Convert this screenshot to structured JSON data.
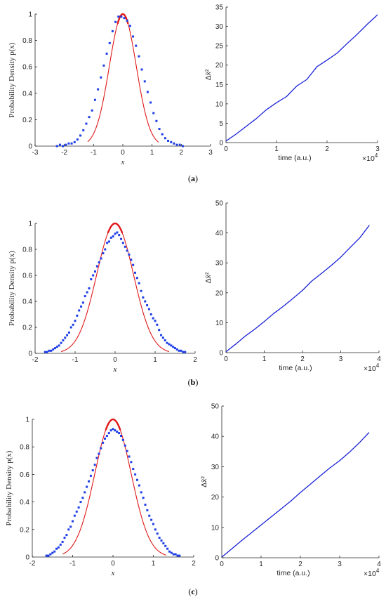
{
  "colors": {
    "scatter": "#1f3fe6",
    "fit": "#e01818",
    "msd": "#1a22d6",
    "axis": "#262626"
  },
  "panels": [
    {
      "caption_open": "(",
      "caption_letter": "a",
      "caption_close": ")",
      "left": {
        "xlabel": "x",
        "ylabel": "Probability Density p(x)",
        "xticks": [
          "-3",
          "-2",
          "-1",
          "0",
          "1",
          "2",
          "3"
        ],
        "yticks": [
          "0",
          "0.2",
          "0.4",
          "0.6",
          "0.8",
          "1"
        ]
      },
      "right": {
        "xlabel": "time (a.u.)",
        "ylabel": "Δx̄²",
        "xticks": [
          "0",
          "1",
          "2",
          "3"
        ],
        "yticks": [
          "0",
          "5",
          "10",
          "15",
          "20",
          "25",
          "30",
          "35"
        ],
        "x_exponent_base": "×10",
        "x_exponent_power": "4"
      }
    },
    {
      "caption_open": "(",
      "caption_letter": "b",
      "caption_close": ")",
      "left": {
        "xlabel": "x",
        "ylabel": "Probability Density p(x)",
        "xticks": [
          "-2",
          "-1",
          "0",
          "1",
          "2"
        ],
        "yticks": [
          "0",
          "0.2",
          "0.4",
          "0.6",
          "0.8",
          "1"
        ]
      },
      "right": {
        "xlabel": "time (a.u.)",
        "ylabel": "Δx̄²",
        "xticks": [
          "0",
          "1",
          "2",
          "3",
          "4"
        ],
        "yticks": [
          "0",
          "10",
          "20",
          "30",
          "40",
          "50"
        ],
        "x_exponent_base": "×10",
        "x_exponent_power": "4"
      }
    },
    {
      "caption_open": "(",
      "caption_letter": "c",
      "caption_close": ")",
      "left": {
        "xlabel": "x",
        "ylabel": "Probability Density p(x)",
        "xticks": [
          "-2",
          "-1",
          "0",
          "1",
          "2"
        ],
        "yticks": [
          "0",
          "0.2",
          "0.4",
          "0.6",
          "0.8",
          "1"
        ]
      },
      "right": {
        "xlabel": "time (a.u.)",
        "ylabel": "Δx̄²",
        "xticks": [
          "0",
          "1",
          "2",
          "3",
          "4"
        ],
        "yticks": [
          "0",
          "10",
          "20",
          "30",
          "40",
          "50"
        ],
        "x_exponent_base": "×10",
        "x_exponent_power": "4"
      }
    }
  ],
  "chart_data": [
    {
      "type": "scatter",
      "panel": "a-left",
      "xlabel": "x",
      "ylabel": "Probability Density p(x)",
      "xlim": [
        -3,
        3
      ],
      "ylim": [
        0,
        1
      ],
      "series": [
        {
          "kind": "markers",
          "x": [
            -2.25,
            -2.15,
            -2.05,
            -1.95,
            -1.85,
            -1.75,
            -1.65,
            -1.55,
            -1.45,
            -1.35,
            -1.25,
            -1.15,
            -1.05,
            -0.95,
            -0.85,
            -0.75,
            -0.65,
            -0.55,
            -0.45,
            -0.35,
            -0.25,
            -0.15,
            -0.05,
            0.05,
            0.15,
            0.25,
            0.35,
            0.45,
            0.55,
            0.65,
            0.75,
            0.85,
            0.95,
            1.05,
            1.15,
            1.25,
            1.35,
            1.45,
            1.55,
            1.65,
            1.75,
            1.85,
            1.95,
            2.05
          ],
          "y": [
            0.0,
            0.01,
            0.0,
            0.01,
            0.02,
            0.02,
            0.03,
            0.05,
            0.08,
            0.12,
            0.17,
            0.22,
            0.27,
            0.35,
            0.43,
            0.52,
            0.61,
            0.7,
            0.78,
            0.87,
            0.94,
            0.98,
            0.98,
            0.97,
            0.95,
            0.91,
            0.83,
            0.76,
            0.68,
            0.58,
            0.49,
            0.41,
            0.33,
            0.25,
            0.19,
            0.13,
            0.09,
            0.06,
            0.04,
            0.03,
            0.02,
            0.01,
            0.01,
            0.0
          ]
        },
        {
          "kind": "curve",
          "mu": 0,
          "sigma": 0.46,
          "amplitude": 1,
          "x_range": [
            -1.2,
            1.22
          ]
        }
      ]
    },
    {
      "type": "line",
      "panel": "a-right",
      "xlabel": "time (a.u.)",
      "ylabel": "Δx̄²",
      "xlim": [
        0,
        30000
      ],
      "ylim": [
        0,
        35
      ],
      "series": [
        {
          "x": [
            0,
            2000,
            4000,
            6000,
            8000,
            10000,
            12000,
            14000,
            16000,
            18000,
            20000,
            22000,
            24000,
            26000,
            28000,
            30000
          ],
          "y": [
            0.4,
            2.2,
            4.2,
            6.2,
            8.5,
            10.3,
            11.9,
            14.6,
            16.3,
            19.6,
            21.3,
            23.1,
            25.6,
            28.0,
            30.6,
            33.0
          ]
        }
      ]
    },
    {
      "type": "scatter",
      "panel": "b-left",
      "xlabel": "x",
      "ylabel": "Probability Density p(x)",
      "xlim": [
        -2,
        2
      ],
      "ylim": [
        0,
        1
      ],
      "series": [
        {
          "kind": "markers",
          "x": [
            -1.75,
            -1.7,
            -1.65,
            -1.6,
            -1.55,
            -1.5,
            -1.45,
            -1.4,
            -1.35,
            -1.3,
            -1.25,
            -1.2,
            -1.15,
            -1.1,
            -1.05,
            -1.0,
            -0.95,
            -0.9,
            -0.85,
            -0.8,
            -0.75,
            -0.7,
            -0.65,
            -0.6,
            -0.55,
            -0.5,
            -0.45,
            -0.4,
            -0.35,
            -0.3,
            -0.25,
            -0.2,
            -0.15,
            -0.1,
            -0.05,
            0.0,
            0.05,
            0.1,
            0.15,
            0.2,
            0.25,
            0.3,
            0.35,
            0.4,
            0.45,
            0.5,
            0.55,
            0.6,
            0.65,
            0.7,
            0.75,
            0.8,
            0.85,
            0.9,
            0.95,
            1.0,
            1.05,
            1.1,
            1.15,
            1.2,
            1.25,
            1.3,
            1.35,
            1.4,
            1.45,
            1.5,
            1.55,
            1.6,
            1.65,
            1.7,
            1.75
          ],
          "y": [
            0.01,
            0.01,
            0.02,
            0.02,
            0.03,
            0.04,
            0.05,
            0.06,
            0.08,
            0.1,
            0.12,
            0.14,
            0.16,
            0.2,
            0.22,
            0.25,
            0.29,
            0.33,
            0.36,
            0.39,
            0.44,
            0.47,
            0.5,
            0.57,
            0.6,
            0.63,
            0.67,
            0.7,
            0.73,
            0.77,
            0.8,
            0.85,
            0.86,
            0.89,
            0.9,
            0.92,
            0.93,
            0.91,
            0.88,
            0.85,
            0.82,
            0.79,
            0.76,
            0.72,
            0.68,
            0.62,
            0.58,
            0.54,
            0.48,
            0.43,
            0.4,
            0.37,
            0.34,
            0.3,
            0.27,
            0.25,
            0.22,
            0.18,
            0.14,
            0.12,
            0.1,
            0.08,
            0.07,
            0.06,
            0.05,
            0.04,
            0.03,
            0.02,
            0.02,
            0.01,
            0.01
          ]
        },
        {
          "kind": "curve",
          "mu": 0,
          "sigma": 0.46,
          "amplitude": 1,
          "x_range": [
            -1.35,
            1.35
          ]
        }
      ]
    },
    {
      "type": "line",
      "panel": "b-right",
      "xlabel": "time (a.u.)",
      "ylabel": "Δx̄²",
      "xlim": [
        0,
        40000
      ],
      "ylim": [
        0,
        50
      ],
      "series": [
        {
          "x": [
            0,
            2500,
            5000,
            7500,
            10000,
            12500,
            15000,
            17500,
            20000,
            22500,
            25000,
            27500,
            30000,
            32500,
            35000,
            37500
          ],
          "y": [
            0.3,
            2.8,
            5.5,
            7.8,
            10.4,
            13.1,
            15.5,
            18.1,
            20.8,
            24.0,
            26.5,
            29.1,
            31.9,
            35.2,
            38.4,
            42.6
          ]
        }
      ]
    },
    {
      "type": "scatter",
      "panel": "c-left",
      "xlabel": "x",
      "ylabel": "Probability Density p(x)",
      "xlim": [
        -2,
        2
      ],
      "ylim": [
        0,
        1
      ],
      "series": [
        {
          "kind": "markers",
          "x": [
            -1.65,
            -1.6,
            -1.55,
            -1.5,
            -1.45,
            -1.4,
            -1.35,
            -1.3,
            -1.25,
            -1.2,
            -1.15,
            -1.1,
            -1.05,
            -1.0,
            -0.95,
            -0.9,
            -0.85,
            -0.8,
            -0.75,
            -0.7,
            -0.65,
            -0.6,
            -0.55,
            -0.5,
            -0.45,
            -0.4,
            -0.35,
            -0.3,
            -0.25,
            -0.2,
            -0.15,
            -0.1,
            -0.05,
            0.0,
            0.05,
            0.1,
            0.15,
            0.2,
            0.25,
            0.3,
            0.35,
            0.4,
            0.45,
            0.5,
            0.55,
            0.6,
            0.65,
            0.7,
            0.75,
            0.8,
            0.85,
            0.9,
            0.95,
            1.0,
            1.05,
            1.1,
            1.15,
            1.2,
            1.25,
            1.3,
            1.35,
            1.4,
            1.45,
            1.5,
            1.55,
            1.6,
            1.65
          ],
          "y": [
            0.01,
            0.01,
            0.02,
            0.03,
            0.04,
            0.06,
            0.07,
            0.09,
            0.11,
            0.14,
            0.16,
            0.2,
            0.22,
            0.26,
            0.3,
            0.33,
            0.36,
            0.4,
            0.43,
            0.47,
            0.51,
            0.55,
            0.59,
            0.63,
            0.67,
            0.72,
            0.75,
            0.79,
            0.83,
            0.86,
            0.88,
            0.9,
            0.92,
            0.93,
            0.92,
            0.91,
            0.9,
            0.88,
            0.85,
            0.81,
            0.77,
            0.73,
            0.69,
            0.64,
            0.6,
            0.56,
            0.52,
            0.47,
            0.43,
            0.38,
            0.34,
            0.3,
            0.27,
            0.24,
            0.2,
            0.17,
            0.14,
            0.12,
            0.1,
            0.08,
            0.06,
            0.04,
            0.03,
            0.02,
            0.02,
            0.01,
            0.01
          ]
        },
        {
          "kind": "curve",
          "mu": 0,
          "sigma": 0.45,
          "amplitude": 1,
          "x_range": [
            -1.25,
            1.32
          ]
        }
      ]
    },
    {
      "type": "line",
      "panel": "c-right",
      "xlabel": "time (a.u.)",
      "ylabel": "Δx̄²",
      "xlim": [
        0,
        40000
      ],
      "ylim": [
        0,
        50
      ],
      "series": [
        {
          "x": [
            0,
            2500,
            5000,
            7500,
            10000,
            12500,
            15000,
            17500,
            20000,
            22500,
            25000,
            27500,
            30000,
            32500,
            35000,
            37500
          ],
          "y": [
            0.2,
            2.9,
            5.6,
            8.2,
            10.8,
            13.4,
            16.0,
            18.6,
            21.5,
            24.2,
            26.9,
            29.6,
            32.0,
            34.8,
            37.9,
            41.3
          ]
        }
      ]
    }
  ]
}
